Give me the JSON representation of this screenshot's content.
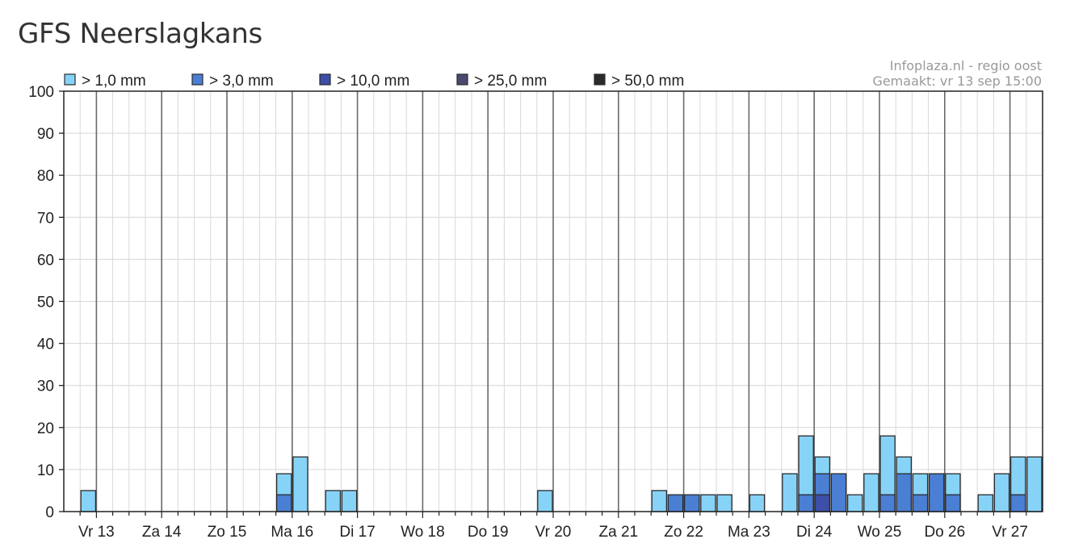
{
  "page": {
    "title": "GFS Neerslagkans",
    "source_line1": "Infoplaza.nl - regio oost",
    "source_line2": "Gemaakt: vr 13 sep 15:00"
  },
  "colors": {
    "gt1": "#87d3f8",
    "gt3": "#4a7fd4",
    "gt10": "#3d4fa8",
    "gt25": "#4a4a70",
    "gt50": "#2a2a2a"
  },
  "chart_data": {
    "type": "bar",
    "stacked": true,
    "title": "GFS Neerslagkans",
    "ylim": [
      0,
      100
    ],
    "y_ticks": [
      0,
      10,
      20,
      30,
      40,
      50,
      60,
      70,
      80,
      90,
      100
    ],
    "day_labels": [
      "Vr 13",
      "Za 14",
      "Zo 15",
      "Ma 16",
      "Di 17",
      "Wo 18",
      "Do 19",
      "Vr 20",
      "Za 21",
      "Zo 22",
      "Ma 23",
      "Di 24",
      "Wo 25",
      "Do 26",
      "Vr 27"
    ],
    "slots_per_day": 4,
    "legend_position": "top-left",
    "grid": true,
    "legend": [
      {
        "label": "> 1,0 mm",
        "color_key": "gt1"
      },
      {
        "label": "> 3,0 mm",
        "color_key": "gt3"
      },
      {
        "label": "> 10,0 mm",
        "color_key": "gt10"
      },
      {
        "label": "> 25,0 mm",
        "color_key": "gt25"
      },
      {
        "label": "> 50,0 mm",
        "color_key": "gt50"
      }
    ],
    "bars": [
      {
        "slot": 1,
        "gt1": 5
      },
      {
        "slot": 13,
        "gt1": 9,
        "gt3": 4
      },
      {
        "slot": 14,
        "gt1": 13
      },
      {
        "slot": 16,
        "gt1": 5
      },
      {
        "slot": 17,
        "gt1": 5
      },
      {
        "slot": 29,
        "gt1": 5
      },
      {
        "slot": 36,
        "gt1": 5
      },
      {
        "slot": 37,
        "gt1": 4,
        "gt3": 4
      },
      {
        "slot": 38,
        "gt1": 4,
        "gt3": 4
      },
      {
        "slot": 39,
        "gt1": 4
      },
      {
        "slot": 40,
        "gt1": 4
      },
      {
        "slot": 42,
        "gt1": 4
      },
      {
        "slot": 44,
        "gt1": 9
      },
      {
        "slot": 45,
        "gt1": 18,
        "gt3": 4
      },
      {
        "slot": 46,
        "gt1": 13,
        "gt3": 9,
        "gt10": 4
      },
      {
        "slot": 47,
        "gt1": 9,
        "gt3": 9
      },
      {
        "slot": 48,
        "gt1": 4
      },
      {
        "slot": 49,
        "gt1": 9
      },
      {
        "slot": 50,
        "gt1": 18,
        "gt3": 4
      },
      {
        "slot": 51,
        "gt1": 13,
        "gt3": 9
      },
      {
        "slot": 52,
        "gt1": 9,
        "gt3": 4
      },
      {
        "slot": 53,
        "gt1": 9,
        "gt3": 9
      },
      {
        "slot": 54,
        "gt1": 9,
        "gt3": 4
      },
      {
        "slot": 56,
        "gt1": 4
      },
      {
        "slot": 57,
        "gt1": 9
      },
      {
        "slot": 58,
        "gt1": 13,
        "gt3": 4
      },
      {
        "slot": 59,
        "gt1": 13
      }
    ]
  }
}
